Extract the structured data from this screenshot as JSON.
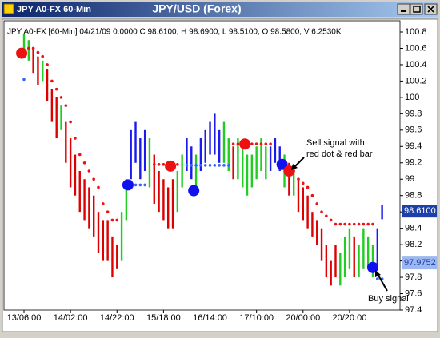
{
  "window_title": "JPY A0-FX 60-Min",
  "chart_data": {
    "type": "ohlc",
    "title": "JPY/USD (Forex)",
    "info": "JPY A0-FX [60-Min] 04/21/09  0.0000  C 98.6100,  H 98.6900,  L 98.5100,  O 98.5800,  V 6.2530K",
    "xlim": [
      -8.6,
      161.7
    ],
    "ylim": [
      97.4,
      100.8
    ],
    "xticks": [
      {
        "value": 0,
        "label": "13/06:00"
      },
      {
        "value": 20,
        "label": "14/02:00"
      },
      {
        "value": 40,
        "label": "14/22:00"
      },
      {
        "value": 60,
        "label": "15/18:00"
      },
      {
        "value": 80,
        "label": "16/14:00"
      },
      {
        "value": 100,
        "label": "17/10:00"
      },
      {
        "value": 120,
        "label": "20/00:00"
      },
      {
        "value": 140,
        "label": "20/20:00"
      }
    ],
    "yticks": [
      97.4,
      97.6,
      97.8,
      98,
      98.2,
      98.4,
      98.6,
      98.8,
      99,
      99.2,
      99.4,
      99.6,
      99.8,
      100,
      100.2,
      100.4,
      100.6,
      100.8
    ],
    "bars": [
      {
        "x": 0,
        "high": 100.78,
        "low": 100.5,
        "color": "#22cc22"
      },
      {
        "x": 2,
        "high": 100.7,
        "low": 100.45,
        "color": "#22cc22"
      },
      {
        "x": 4,
        "high": 100.6,
        "low": 100.3,
        "color": "#dd0000"
      },
      {
        "x": 6,
        "high": 100.5,
        "low": 100.15,
        "color": "#dd0000"
      },
      {
        "x": 8,
        "high": 100.45,
        "low": 100.2,
        "color": "#22cc22"
      },
      {
        "x": 10,
        "high": 100.35,
        "low": 99.95,
        "color": "#dd0000"
      },
      {
        "x": 12,
        "high": 100.1,
        "low": 99.7,
        "color": "#dd0000"
      },
      {
        "x": 14,
        "high": 100.0,
        "low": 99.5,
        "color": "#dd0000"
      },
      {
        "x": 16,
        "high": 99.9,
        "low": 99.6,
        "color": "#22cc22"
      },
      {
        "x": 18,
        "high": 99.7,
        "low": 99.2,
        "color": "#dd0000"
      },
      {
        "x": 20,
        "high": 99.5,
        "low": 98.9,
        "color": "#dd0000"
      },
      {
        "x": 22,
        "high": 99.3,
        "low": 98.8,
        "color": "#dd0000"
      },
      {
        "x": 24,
        "high": 99.1,
        "low": 98.6,
        "color": "#dd0000"
      },
      {
        "x": 26,
        "high": 99.0,
        "low": 98.5,
        "color": "#dd0000"
      },
      {
        "x": 28,
        "high": 98.9,
        "low": 98.4,
        "color": "#dd0000"
      },
      {
        "x": 30,
        "high": 98.8,
        "low": 98.3,
        "color": "#dd0000"
      },
      {
        "x": 32,
        "high": 98.6,
        "low": 98.1,
        "color": "#dd0000"
      },
      {
        "x": 34,
        "high": 98.5,
        "low": 98.0,
        "color": "#dd0000"
      },
      {
        "x": 36,
        "high": 98.5,
        "low": 98.0,
        "color": "#dd0000"
      },
      {
        "x": 38,
        "high": 98.3,
        "low": 97.8,
        "color": "#dd0000"
      },
      {
        "x": 40,
        "high": 98.2,
        "low": 97.9,
        "color": "#dd0000"
      },
      {
        "x": 42,
        "high": 98.6,
        "low": 98.0,
        "color": "#22cc22"
      },
      {
        "x": 44,
        "high": 99.0,
        "low": 98.5,
        "color": "#22cc22"
      },
      {
        "x": 46,
        "high": 99.6,
        "low": 99.0,
        "color": "#1a1aee"
      },
      {
        "x": 48,
        "high": 99.7,
        "low": 99.2,
        "color": "#1a1aee"
      },
      {
        "x": 50,
        "high": 99.5,
        "low": 99.0,
        "color": "#1a1aee"
      },
      {
        "x": 52,
        "high": 99.6,
        "low": 99.1,
        "color": "#1a1aee"
      },
      {
        "x": 54,
        "high": 99.5,
        "low": 98.9,
        "color": "#22cc22"
      },
      {
        "x": 56,
        "high": 99.3,
        "low": 98.7,
        "color": "#dd0000"
      },
      {
        "x": 58,
        "high": 99.1,
        "low": 98.6,
        "color": "#dd0000"
      },
      {
        "x": 60,
        "high": 99.0,
        "low": 98.5,
        "color": "#dd0000"
      },
      {
        "x": 62,
        "high": 98.9,
        "low": 98.4,
        "color": "#dd0000"
      },
      {
        "x": 64,
        "high": 99.0,
        "low": 98.4,
        "color": "#dd0000"
      },
      {
        "x": 66,
        "high": 99.1,
        "low": 98.6,
        "color": "#22cc22"
      },
      {
        "x": 68,
        "high": 99.3,
        "low": 98.9,
        "color": "#22cc22"
      },
      {
        "x": 70,
        "high": 99.5,
        "low": 99.1,
        "color": "#1a1aee"
      },
      {
        "x": 72,
        "high": 99.4,
        "low": 99.0,
        "color": "#1a1aee"
      },
      {
        "x": 74,
        "high": 99.3,
        "low": 98.9,
        "color": "#22cc22"
      },
      {
        "x": 76,
        "high": 99.5,
        "low": 99.1,
        "color": "#1a1aee"
      },
      {
        "x": 78,
        "high": 99.6,
        "low": 99.2,
        "color": "#1a1aee"
      },
      {
        "x": 80,
        "high": 99.7,
        "low": 99.3,
        "color": "#1a1aee"
      },
      {
        "x": 82,
        "high": 99.8,
        "low": 99.3,
        "color": "#1a1aee"
      },
      {
        "x": 84,
        "high": 99.6,
        "low": 99.2,
        "color": "#1a1aee"
      },
      {
        "x": 86,
        "high": 99.7,
        "low": 99.2,
        "color": "#22cc22"
      },
      {
        "x": 88,
        "high": 99.5,
        "low": 99.1,
        "color": "#22cc22"
      },
      {
        "x": 90,
        "high": 99.4,
        "low": 99.0,
        "color": "#dd0000"
      },
      {
        "x": 92,
        "high": 99.5,
        "low": 99.0,
        "color": "#22cc22"
      },
      {
        "x": 94,
        "high": 99.4,
        "low": 98.9,
        "color": "#22cc22"
      },
      {
        "x": 96,
        "high": 99.3,
        "low": 98.8,
        "color": "#22cc22"
      },
      {
        "x": 98,
        "high": 99.3,
        "low": 98.9,
        "color": "#22cc22"
      },
      {
        "x": 100,
        "high": 99.4,
        "low": 99.0,
        "color": "#22cc22"
      },
      {
        "x": 102,
        "high": 99.5,
        "low": 99.1,
        "color": "#22cc22"
      },
      {
        "x": 104,
        "high": 99.4,
        "low": 99.0,
        "color": "#22cc22"
      },
      {
        "x": 106,
        "high": 99.4,
        "low": 99.1,
        "color": "#1a1aee"
      },
      {
        "x": 108,
        "high": 99.5,
        "low": 99.2,
        "color": "#1a1aee"
      },
      {
        "x": 110,
        "high": 99.4,
        "low": 99.1,
        "color": "#1a1aee"
      },
      {
        "x": 112,
        "high": 99.3,
        "low": 98.9,
        "color": "#22cc22"
      },
      {
        "x": 114,
        "high": 99.2,
        "low": 98.8,
        "color": "#dd0000"
      },
      {
        "x": 116,
        "high": 99.1,
        "low": 98.8,
        "color": "#22cc22"
      },
      {
        "x": 118,
        "high": 99.0,
        "low": 98.6,
        "color": "#dd0000"
      },
      {
        "x": 120,
        "high": 98.9,
        "low": 98.5,
        "color": "#dd0000"
      },
      {
        "x": 122,
        "high": 98.8,
        "low": 98.4,
        "color": "#dd0000"
      },
      {
        "x": 124,
        "high": 98.6,
        "low": 98.3,
        "color": "#dd0000"
      },
      {
        "x": 126,
        "high": 98.5,
        "low": 98.2,
        "color": "#dd0000"
      },
      {
        "x": 128,
        "high": 98.4,
        "low": 98.0,
        "color": "#dd0000"
      },
      {
        "x": 130,
        "high": 98.2,
        "low": 97.8,
        "color": "#dd0000"
      },
      {
        "x": 132,
        "high": 98.0,
        "low": 97.7,
        "color": "#dd0000"
      },
      {
        "x": 134,
        "high": 98.2,
        "low": 97.8,
        "color": "#dd0000"
      },
      {
        "x": 136,
        "high": 98.1,
        "low": 97.7,
        "color": "#22cc22"
      },
      {
        "x": 138,
        "high": 98.3,
        "low": 97.8,
        "color": "#22cc22"
      },
      {
        "x": 140,
        "high": 98.4,
        "low": 97.9,
        "color": "#22cc22"
      },
      {
        "x": 142,
        "high": 98.3,
        "low": 97.8,
        "color": "#dd0000"
      },
      {
        "x": 144,
        "high": 98.2,
        "low": 97.8,
        "color": "#22cc22"
      },
      {
        "x": 146,
        "high": 98.4,
        "low": 97.9,
        "color": "#22cc22"
      },
      {
        "x": 148,
        "high": 98.3,
        "low": 97.9,
        "color": "#22cc22"
      },
      {
        "x": 150,
        "high": 98.2,
        "low": 97.8,
        "color": "#22cc22"
      },
      {
        "x": 152,
        "high": 98.4,
        "low": 97.9,
        "color": "#1a1aee"
      },
      {
        "x": 154,
        "high": 98.69,
        "low": 98.51,
        "color": "#1a1aee"
      }
    ],
    "dots": [
      {
        "color": "#ee1111",
        "values": [
          null,
          100.6,
          100.6,
          100.55,
          100.5,
          100.4,
          100.2,
          100.1,
          100.0,
          99.9,
          99.7,
          99.5,
          99.3,
          99.2,
          99.1,
          99.0,
          98.9,
          98.7,
          98.6,
          98.5,
          98.5,
          null,
          null,
          null,
          null,
          null,
          null,
          null,
          99.18,
          99.18,
          99.18,
          99.18,
          99.18,
          99.18,
          null,
          null,
          null,
          null,
          null,
          null,
          null,
          null,
          null,
          null,
          null,
          99.43,
          99.43,
          99.43,
          99.43,
          99.43,
          99.43,
          99.43,
          99.43,
          99.43,
          null,
          null,
          null,
          99.1,
          99.1,
          99.0,
          98.95,
          98.9,
          98.8,
          98.7,
          98.6,
          98.55,
          98.5,
          98.45,
          98.45,
          98.45,
          98.45,
          98.45,
          98.45,
          98.45,
          98.45,
          98.45,
          null,
          null
        ]
      },
      {
        "color": "#3366ff",
        "values": [
          100.22,
          null,
          null,
          null,
          null,
          null,
          null,
          null,
          null,
          null,
          null,
          null,
          null,
          null,
          null,
          null,
          null,
          null,
          null,
          null,
          null,
          null,
          98.93,
          98.93,
          98.93,
          98.93,
          98.93,
          null,
          null,
          null,
          null,
          null,
          null,
          null,
          null,
          99.17,
          99.17,
          99.17,
          99.17,
          99.17,
          99.17,
          99.17,
          99.17,
          99.17,
          99.17,
          null,
          null,
          null,
          null,
          null,
          null,
          null,
          null,
          null,
          null,
          null,
          null,
          null,
          null,
          null,
          null,
          null,
          null,
          null,
          null,
          null,
          null,
          null,
          null,
          null,
          null,
          null,
          null,
          null,
          null,
          null,
          97.78,
          97.78
        ]
      }
    ],
    "signals": [
      {
        "x": -1,
        "value": 100.54,
        "color": "#ee1111"
      },
      {
        "x": 44.7,
        "value": 98.93,
        "color": "#1111ee"
      },
      {
        "x": 63,
        "value": 99.16,
        "color": "#ee1111"
      },
      {
        "x": 73,
        "value": 98.86,
        "color": "#1111ee"
      },
      {
        "x": 95,
        "value": 99.43,
        "color": "#ee1111"
      },
      {
        "x": 111,
        "value": 99.18,
        "color": "#1111ee"
      },
      {
        "x": 114,
        "value": 99.1,
        "color": "#ee1111"
      },
      {
        "x": 150,
        "value": 97.92,
        "color": "#1111ee"
      }
    ],
    "price_labels": [
      {
        "value": 98.61,
        "label": "98.6100",
        "color": "#1c3fa8"
      },
      {
        "value": 97.9752,
        "label": "97.9752",
        "color": "#9db8f0"
      }
    ],
    "sell_annotation": [
      "Sell signal with",
      "red dot & red bar"
    ],
    "buy_annotation": "Buy signal"
  }
}
